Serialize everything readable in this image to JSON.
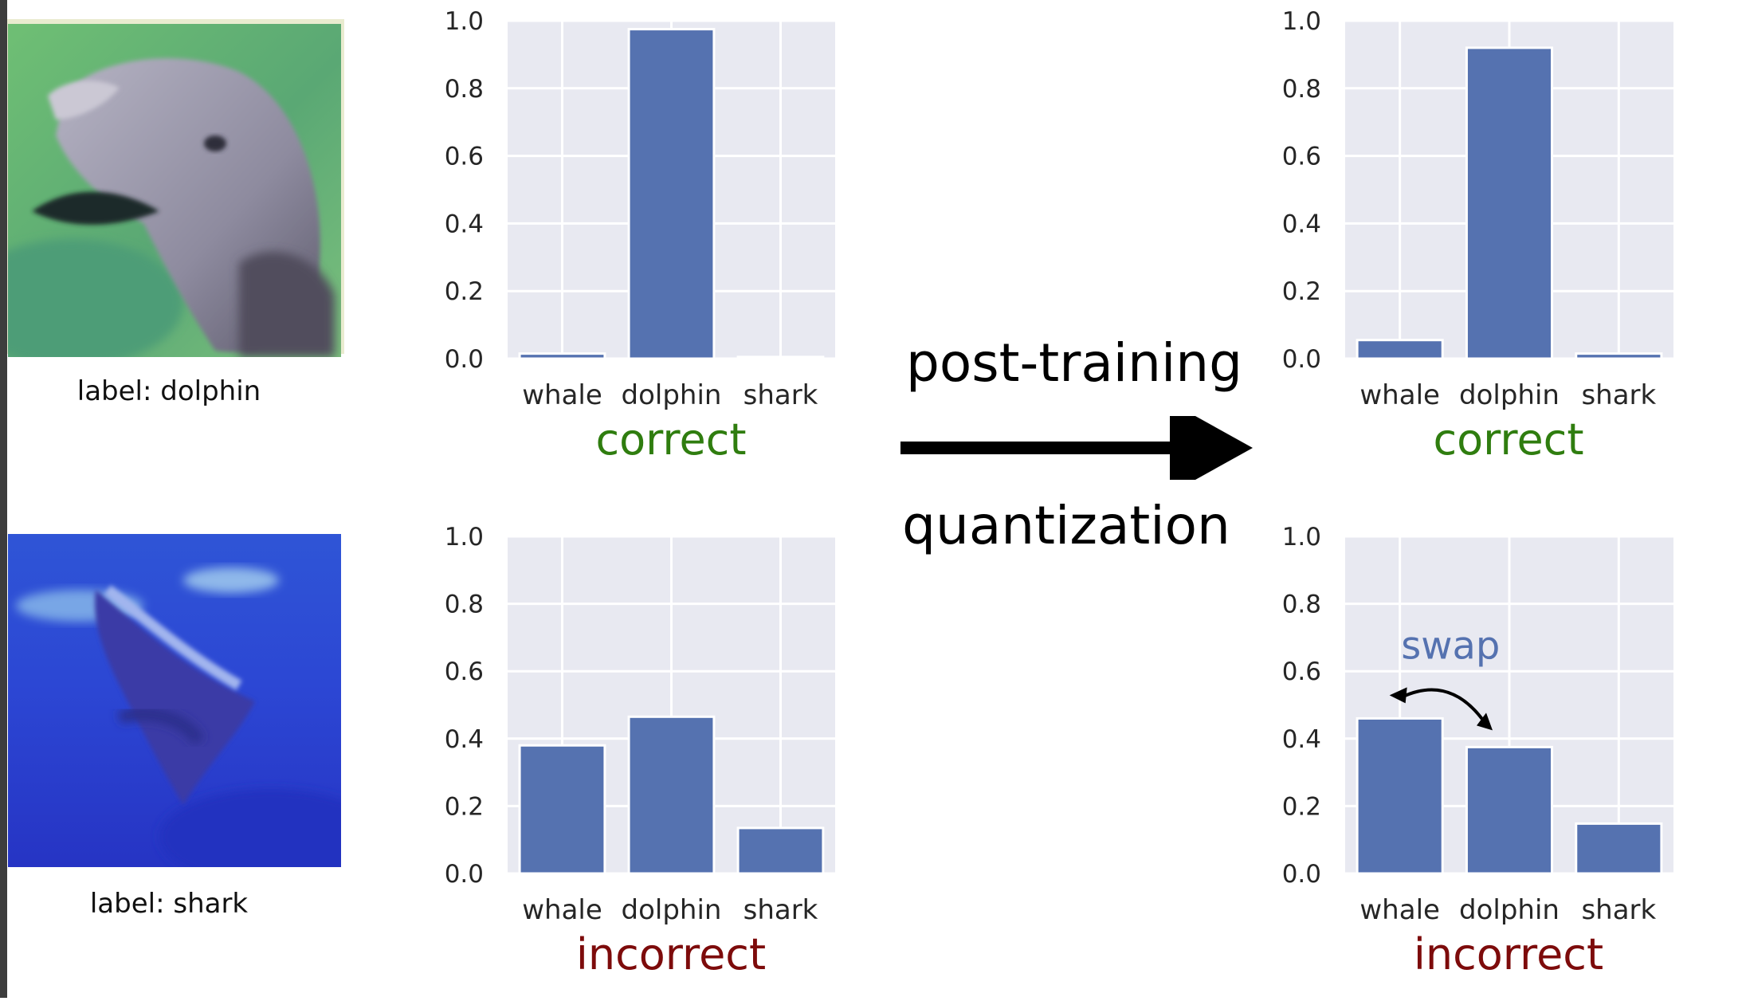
{
  "colors": {
    "bar": "#5572b0",
    "plot_bg": "#e8e9f1",
    "grid": "#ffffff",
    "correct": "#2f7d0f",
    "incorrect": "#7d0b0b",
    "swap": "#5572b0"
  },
  "samples": [
    {
      "label_text": "label: dolphin",
      "image": "blurry-dolphin-on-green-background",
      "before": {
        "chart_data": {
          "type": "bar",
          "categories": [
            "whale",
            "dolphin",
            "shark"
          ],
          "values": [
            0.015,
            0.975,
            0.005
          ],
          "ylim": [
            0,
            1
          ],
          "yticks": [
            "0.0",
            "0.2",
            "0.4",
            "0.6",
            "0.8",
            "1.0"
          ],
          "grid": true
        },
        "verdict": "correct",
        "verdict_kind": "correct"
      },
      "after": {
        "chart_data": {
          "type": "bar",
          "categories": [
            "whale",
            "dolphin",
            "shark"
          ],
          "values": [
            0.055,
            0.92,
            0.015
          ],
          "ylim": [
            0,
            1
          ],
          "yticks": [
            "0.0",
            "0.2",
            "0.4",
            "0.6",
            "0.8",
            "1.0"
          ],
          "grid": true
        },
        "verdict": "correct",
        "verdict_kind": "correct"
      }
    },
    {
      "label_text": "label: shark",
      "image": "blurry-shark-on-blue-background",
      "before": {
        "chart_data": {
          "type": "bar",
          "categories": [
            "whale",
            "dolphin",
            "shark"
          ],
          "values": [
            0.38,
            0.465,
            0.135
          ],
          "ylim": [
            0,
            1
          ],
          "yticks": [
            "0.0",
            "0.2",
            "0.4",
            "0.6",
            "0.8",
            "1.0"
          ],
          "grid": true
        },
        "verdict": "incorrect",
        "verdict_kind": "incorrect"
      },
      "after": {
        "chart_data": {
          "type": "bar",
          "categories": [
            "whale",
            "dolphin",
            "shark"
          ],
          "values": [
            0.46,
            0.375,
            0.148
          ],
          "ylim": [
            0,
            1
          ],
          "yticks": [
            "0.0",
            "0.2",
            "0.4",
            "0.6",
            "0.8",
            "1.0"
          ],
          "grid": true
        },
        "verdict": "incorrect",
        "verdict_kind": "incorrect",
        "annotation": "swap"
      }
    }
  ],
  "arrow": {
    "top_text": "post-training",
    "bottom_text": "quantization",
    "icon": "right-arrow-icon"
  }
}
